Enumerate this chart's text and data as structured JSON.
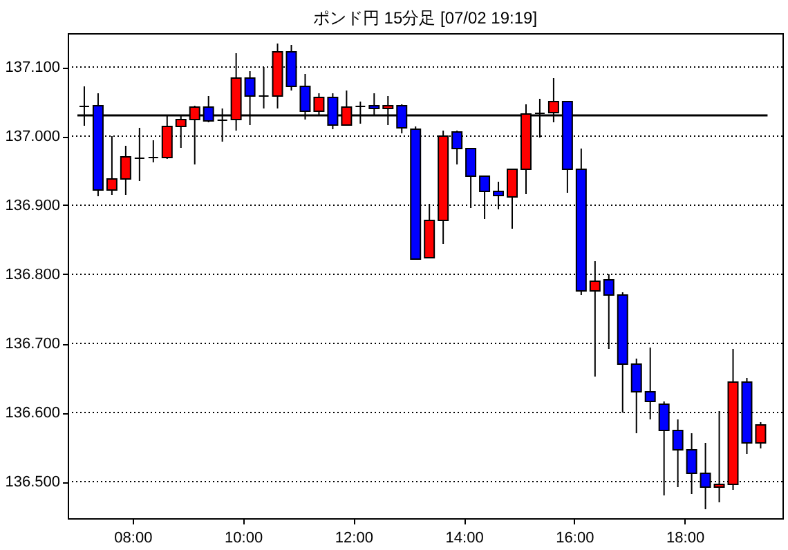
{
  "chart_data": {
    "type": "candlestick",
    "title": "ポンド円 15分足 [07/02 19:19]",
    "x": [
      7.125,
      7.375,
      7.625,
      7.875,
      8.125,
      8.375,
      8.625,
      8.875,
      9.125,
      9.375,
      9.625,
      9.875,
      10.125,
      10.375,
      10.625,
      10.875,
      11.125,
      11.375,
      11.625,
      11.875,
      12.125,
      12.375,
      12.625,
      12.875,
      13.125,
      13.375,
      13.625,
      13.875,
      14.125,
      14.375,
      14.625,
      14.875,
      15.125,
      15.375,
      15.625,
      15.875,
      16.125,
      16.375,
      16.625,
      16.875,
      17.125,
      17.375,
      17.625,
      17.875,
      18.125,
      18.375,
      18.625,
      18.875,
      19.125,
      19.375
    ],
    "ohlc": [
      [
        137.043,
        137.072,
        137.015,
        137.043
      ],
      [
        137.044,
        137.062,
        136.913,
        136.922
      ],
      [
        136.922,
        137.0,
        136.915,
        136.938
      ],
      [
        136.938,
        136.986,
        136.915,
        136.97
      ],
      [
        136.968,
        137.012,
        136.935,
        136.968
      ],
      [
        136.969,
        136.994,
        136.962,
        136.969
      ],
      [
        136.969,
        137.029,
        136.967,
        137.014
      ],
      [
        137.014,
        137.029,
        136.983,
        137.024
      ],
      [
        137.024,
        137.044,
        136.959,
        137.042
      ],
      [
        137.042,
        137.058,
        137.02,
        137.022
      ],
      [
        137.023,
        137.04,
        136.992,
        137.023
      ],
      [
        137.024,
        137.12,
        137.008,
        137.084
      ],
      [
        137.084,
        137.094,
        137.016,
        137.058
      ],
      [
        137.058,
        137.1,
        137.04,
        137.058
      ],
      [
        137.058,
        137.134,
        137.04,
        137.122
      ],
      [
        137.122,
        137.132,
        137.066,
        137.072
      ],
      [
        137.072,
        137.09,
        137.024,
        137.036
      ],
      [
        137.036,
        137.062,
        137.03,
        137.056
      ],
      [
        137.056,
        137.062,
        137.01,
        137.016
      ],
      [
        137.016,
        137.066,
        137.016,
        137.042
      ],
      [
        137.043,
        137.05,
        137.018,
        137.043
      ],
      [
        137.044,
        137.062,
        137.03,
        137.04
      ],
      [
        137.04,
        137.058,
        137.016,
        137.044
      ],
      [
        137.044,
        137.046,
        137.004,
        137.012
      ],
      [
        137.01,
        137.014,
        136.822,
        136.822
      ],
      [
        136.824,
        136.902,
        136.824,
        136.878
      ],
      [
        136.878,
        137.008,
        136.844,
        137.0
      ],
      [
        137.006,
        137.008,
        136.959,
        136.982
      ],
      [
        136.982,
        136.982,
        136.896,
        136.942
      ],
      [
        136.942,
        136.942,
        136.88,
        136.92
      ],
      [
        136.92,
        136.934,
        136.894,
        136.914
      ],
      [
        136.912,
        136.952,
        136.866,
        136.952
      ],
      [
        136.952,
        137.046,
        136.916,
        137.032
      ],
      [
        137.033,
        137.054,
        136.998,
        137.033
      ],
      [
        137.034,
        137.084,
        137.02,
        137.05
      ],
      [
        137.05,
        137.05,
        136.918,
        136.952
      ],
      [
        136.952,
        136.982,
        136.77,
        136.776
      ],
      [
        136.776,
        136.819,
        136.652,
        136.79
      ],
      [
        136.792,
        136.8,
        136.692,
        136.77
      ],
      [
        136.77,
        136.774,
        136.6,
        136.67
      ],
      [
        136.67,
        136.678,
        136.57,
        136.63
      ],
      [
        136.63,
        136.694,
        136.59,
        136.616
      ],
      [
        136.612,
        136.616,
        136.48,
        136.574
      ],
      [
        136.574,
        136.59,
        136.492,
        136.546
      ],
      [
        136.546,
        136.57,
        136.482,
        136.512
      ],
      [
        136.512,
        136.556,
        136.46,
        136.492
      ],
      [
        136.492,
        136.602,
        136.47,
        136.496
      ],
      [
        136.496,
        136.692,
        136.488,
        136.644
      ],
      [
        136.644,
        136.65,
        136.54,
        136.556
      ],
      [
        136.556,
        136.586,
        136.548,
        136.582
      ]
    ],
    "colors": [
      "#000000",
      "#0000ff",
      "#ff0000",
      "#ff0000",
      "#000000",
      "#000000",
      "#ff0000",
      "#ff0000",
      "#ff0000",
      "#0000ff",
      "#000000",
      "#ff0000",
      "#0000ff",
      "#000000",
      "#ff0000",
      "#0000ff",
      "#0000ff",
      "#ff0000",
      "#0000ff",
      "#ff0000",
      "#000000",
      "#0000ff",
      "#ff0000",
      "#0000ff",
      "#0000ff",
      "#ff0000",
      "#ff0000",
      "#0000ff",
      "#0000ff",
      "#0000ff",
      "#0000ff",
      "#ff0000",
      "#ff0000",
      "#000000",
      "#ff0000",
      "#0000ff",
      "#0000ff",
      "#ff0000",
      "#0000ff",
      "#0000ff",
      "#0000ff",
      "#0000ff",
      "#0000ff",
      "#0000ff",
      "#0000ff",
      "#0000ff",
      "#ff0000",
      "#ff0000",
      "#0000ff",
      "#ff0000"
    ],
    "xlim": [
      6.825,
      19.77
    ],
    "xticks": [
      {
        "value": 8,
        "label": "08:00"
      },
      {
        "value": 10,
        "label": "10:00"
      },
      {
        "value": 12,
        "label": "12:00"
      },
      {
        "value": 14,
        "label": "14:00"
      },
      {
        "value": 16,
        "label": "16:00"
      },
      {
        "value": 18,
        "label": "18:00"
      }
    ],
    "ylim": [
      136.447,
      137.149
    ],
    "yticks": [
      {
        "value": 136.5,
        "label": "136.500"
      },
      {
        "value": 136.6,
        "label": "136.600"
      },
      {
        "value": 136.7,
        "label": "136.700"
      },
      {
        "value": 136.8,
        "label": "136.800"
      },
      {
        "value": 136.9,
        "label": "136.900"
      },
      {
        "value": 137.0,
        "label": "137.000"
      },
      {
        "value": 137.1,
        "label": "137.100"
      }
    ],
    "grid": "y",
    "ref_lines": [
      {
        "axis": "y",
        "value": 137.03,
        "color": "#000000"
      }
    ]
  }
}
